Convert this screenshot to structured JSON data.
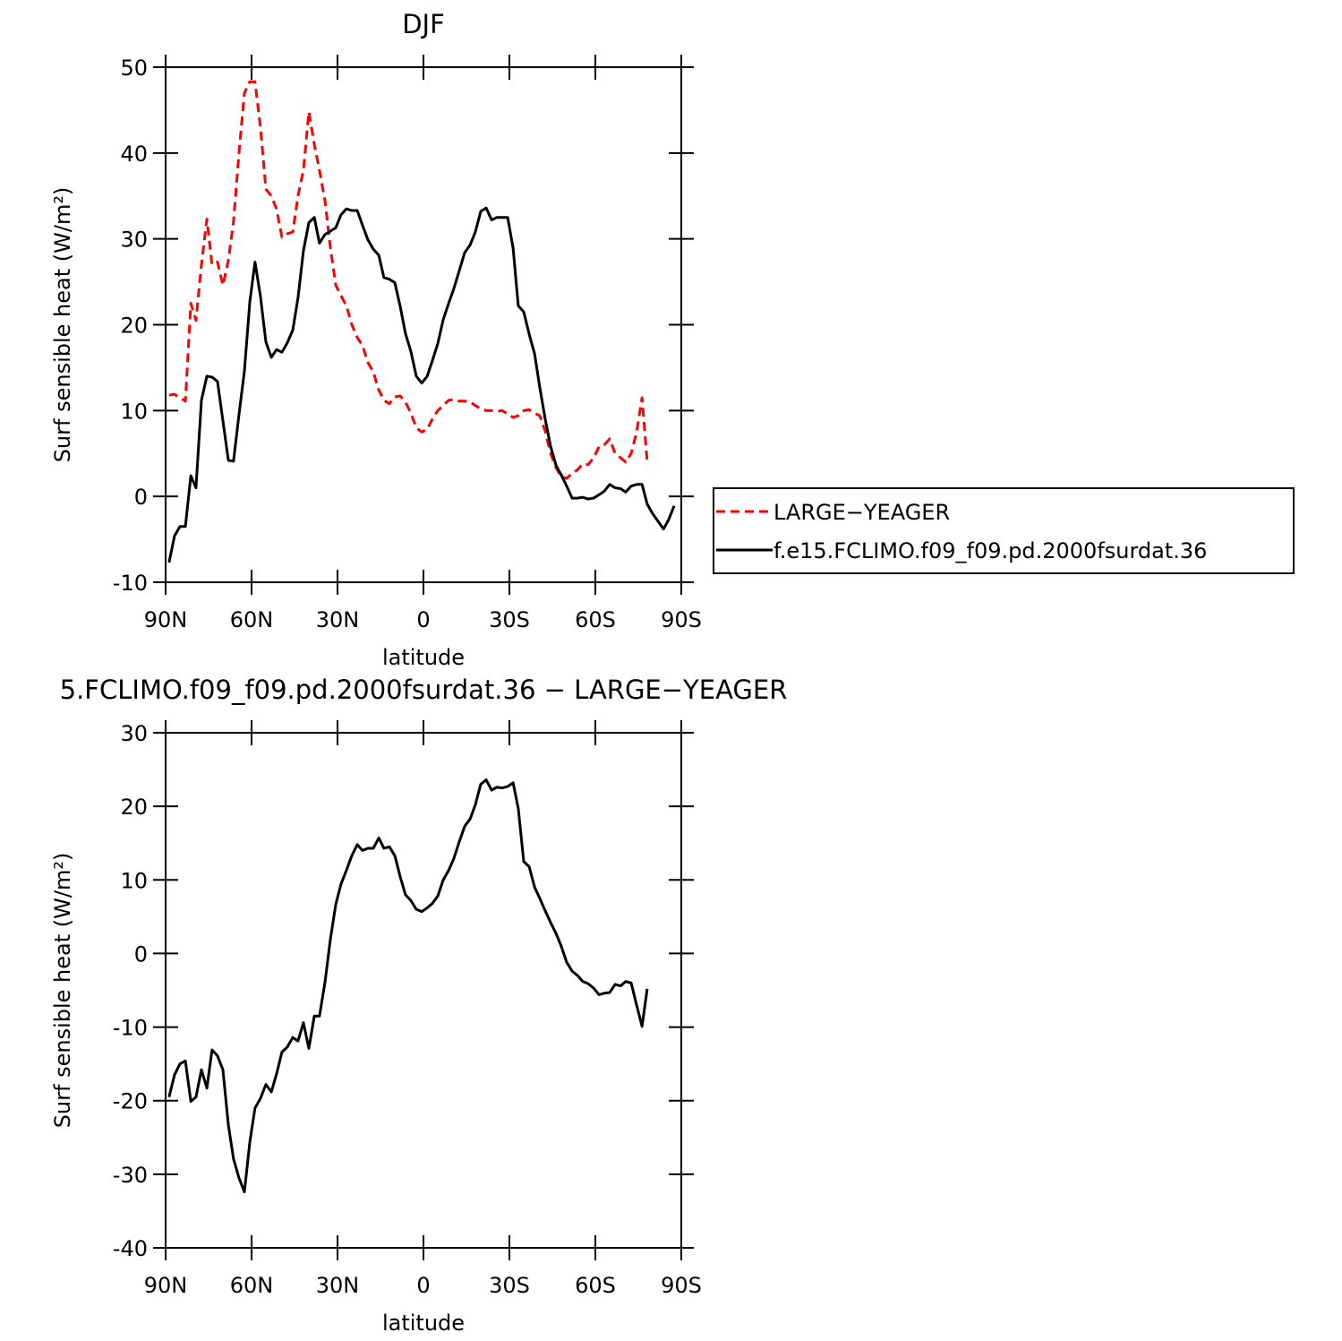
{
  "chart_data": [
    {
      "type": "line",
      "title": "DJF",
      "xlabel": "latitude",
      "ylabel": "Surf sensible heat (W/m²)",
      "x": [
        88.8,
        86.9,
        85.0,
        83.1,
        81.2,
        79.4,
        77.5,
        75.6,
        73.8,
        71.9,
        70.0,
        68.1,
        66.3,
        64.4,
        62.5,
        60.6,
        58.8,
        56.9,
        55.0,
        53.1,
        51.3,
        49.4,
        47.5,
        45.6,
        43.8,
        41.9,
        40.0,
        38.1,
        36.3,
        34.4,
        32.5,
        30.6,
        28.8,
        26.9,
        25.0,
        23.1,
        21.3,
        19.4,
        17.5,
        15.6,
        13.8,
        11.9,
        10.0,
        8.1,
        6.3,
        4.4,
        2.5,
        0.6,
        -1.3,
        -3.1,
        -5.0,
        -6.9,
        -8.8,
        -10.6,
        -12.5,
        -14.4,
        -16.3,
        -18.1,
        -20.0,
        -21.9,
        -23.8,
        -25.6,
        -27.5,
        -29.4,
        -31.3,
        -33.1,
        -35.0,
        -36.9,
        -38.8,
        -40.6,
        -42.5,
        -44.4,
        -46.3,
        -48.1,
        -50.0,
        -51.9,
        -53.8,
        -55.6,
        -57.5,
        -59.4,
        -61.3,
        -63.1,
        -65.0,
        -66.9,
        -68.8,
        -70.6,
        -72.5,
        -74.4,
        -76.3,
        -78.1,
        -80.0,
        -81.9,
        -83.8,
        -85.6,
        -87.5
      ],
      "series": [
        {
          "name": "LARGE−YEAGER",
          "color": "#ff0000",
          "dash": true,
          "values": [
            11.8,
            11.9,
            11.5,
            11.1,
            22.5,
            20.5,
            27,
            32.3,
            27,
            27.3,
            24.6,
            27.5,
            32,
            40,
            47,
            48.3,
            48.3,
            43,
            35.8,
            35,
            33.5,
            30.2,
            30.6,
            30.8,
            35,
            38,
            44.8,
            41,
            38,
            34.5,
            29,
            24.6,
            23.4,
            22.2,
            20,
            18.5,
            17.6,
            15.6,
            14.5,
            12.4,
            11.2,
            10.8,
            11.6,
            11.7,
            11,
            9.7,
            8,
            7.5,
            7.8,
            9,
            10,
            10.6,
            11.2,
            11.3,
            11.1,
            11.1,
            11,
            10.6,
            10.2,
            10,
            10,
            9.9,
            10,
            9.6,
            9.2,
            9.4,
            10,
            10.1,
            9.7,
            9.4,
            7.6,
            5,
            3.3,
            2.3,
            2.1,
            2.7,
            3.1,
            3.8,
            3.7,
            4.5,
            5.8,
            6,
            6.7,
            5,
            4.5,
            4,
            5,
            7.5,
            11.5,
            4,
            null,
            null,
            null,
            null,
            null
          ]
        },
        {
          "name": "f.e15.FCLIMO.f09_f09.pd.2000fsurdat.36",
          "color": "#000000",
          "dash": false,
          "values": [
            -7.7,
            -4.6,
            -3.5,
            -3.5,
            2.4,
            1.0,
            11.2,
            14.0,
            13.9,
            13.4,
            8.8,
            4.2,
            4.1,
            9.5,
            14.6,
            22.7,
            27.3,
            23.3,
            18.0,
            16.2,
            17.1,
            16.8,
            17.9,
            19.4,
            23.1,
            28.6,
            31.9,
            32.5,
            29.5,
            30.5,
            30.9,
            31.3,
            32.8,
            33.5,
            33.3,
            33.3,
            31.6,
            29.9,
            28.8,
            28.1,
            25.5,
            25.3,
            24.9,
            22.1,
            19.0,
            16.9,
            14.0,
            13.2,
            14.0,
            15.8,
            17.8,
            20.6,
            22.5,
            24.2,
            26.3,
            28.4,
            29.3,
            30.8,
            33.2,
            33.6,
            32.2,
            32.5,
            32.5,
            32.5,
            28.9,
            22.2,
            21.5,
            18.9,
            16.6,
            12.7,
            9.0,
            5.8,
            3.6,
            2.5,
            1.2,
            -0.2,
            -0.2,
            -0.1,
            -0.3,
            -0.2,
            0.2,
            0.6,
            1.4,
            1.0,
            0.9,
            0.5,
            1.2,
            1.4,
            1.4,
            -0.9,
            -2.0,
            -2.9,
            -3.8,
            -2.7,
            -1.1
          ]
        }
      ],
      "xlim": [
        90,
        -90
      ],
      "xticks": [
        {
          "value": 90,
          "label": "90N"
        },
        {
          "value": 60,
          "label": "60N"
        },
        {
          "value": 30,
          "label": "30N"
        },
        0,
        {
          "value": -30,
          "label": "30S"
        },
        {
          "value": -60,
          "label": "60S"
        },
        {
          "value": -90,
          "label": "90S"
        }
      ],
      "ylim": [
        -10,
        50
      ],
      "yticks": [
        -10,
        0,
        10,
        20,
        30,
        40,
        50
      ],
      "legend": "right"
    },
    {
      "type": "line",
      "title": "5.FCLIMO.f09_f09.pd.2000fsurdat.36 − LARGE−YEAGER",
      "xlabel": "latitude",
      "ylabel": "Surf sensible heat (W/m²)",
      "x": [
        88.8,
        86.9,
        85.0,
        83.1,
        81.2,
        79.4,
        77.5,
        75.6,
        73.8,
        71.9,
        70.0,
        68.1,
        66.3,
        64.4,
        62.5,
        60.6,
        58.8,
        56.9,
        55.0,
        53.1,
        51.3,
        49.4,
        47.5,
        45.6,
        43.8,
        41.9,
        40.0,
        38.1,
        36.3,
        34.4,
        32.5,
        30.6,
        28.8,
        26.9,
        25.0,
        23.1,
        21.3,
        19.4,
        17.5,
        15.6,
        13.8,
        11.9,
        10.0,
        8.1,
        6.3,
        4.4,
        2.5,
        0.6,
        -1.3,
        -3.1,
        -5.0,
        -6.9,
        -8.8,
        -10.6,
        -12.5,
        -14.4,
        -16.3,
        -18.1,
        -20.0,
        -21.9,
        -23.8,
        -25.6,
        -27.5,
        -29.4,
        -31.3,
        -33.1,
        -35.0,
        -36.9,
        -38.8,
        -40.6,
        -42.5,
        -44.4,
        -46.3,
        -48.1,
        -50.0,
        -51.9,
        -53.8,
        -55.6,
        -57.5,
        -59.4,
        -61.3,
        -63.1,
        -65.0,
        -66.9,
        -68.8,
        -70.6,
        -72.5,
        -74.4,
        -76.3,
        -78.1,
        -80.0,
        -81.9,
        -83.8,
        -85.6,
        -87.5
      ],
      "series": [
        {
          "color": "#000000",
          "dash": false,
          "values": [
            -19.5,
            -16.5,
            -15.0,
            -14.6,
            -20.1,
            -19.5,
            -15.8,
            -18.3,
            -13.1,
            -13.9,
            -15.8,
            -23.3,
            -27.9,
            -30.5,
            -32.4,
            -25.6,
            -21.0,
            -19.7,
            -17.8,
            -18.8,
            -16.4,
            -13.4,
            -12.7,
            -11.4,
            -11.9,
            -9.4,
            -12.9,
            -8.5,
            -8.5,
            -4.0,
            1.9,
            6.7,
            9.4,
            11.3,
            13.3,
            14.8,
            14.0,
            14.3,
            14.3,
            15.7,
            14.3,
            14.5,
            13.3,
            10.4,
            8.0,
            7.2,
            6.0,
            5.7,
            6.2,
            6.8,
            7.8,
            10.0,
            11.3,
            12.9,
            15.2,
            17.3,
            18.3,
            20.2,
            23.0,
            23.6,
            22.2,
            22.6,
            22.5,
            22.7,
            23.2,
            19.7,
            12.5,
            11.8,
            9.0,
            7.5,
            5.8,
            4.2,
            2.7,
            1.0,
            -1.2,
            -2.4,
            -3.0,
            -3.8,
            -4.1,
            -4.7,
            -5.6,
            -5.4,
            -5.3,
            -4.2,
            -4.4,
            -3.8,
            -4.0,
            -7.0,
            -9.9,
            -4.8,
            null,
            null,
            null,
            null,
            null
          ]
        }
      ],
      "xlim": [
        90,
        -90
      ],
      "xticks": [
        {
          "value": 90,
          "label": "90N"
        },
        {
          "value": 60,
          "label": "60N"
        },
        {
          "value": 30,
          "label": "30N"
        },
        0,
        {
          "value": -30,
          "label": "30S"
        },
        {
          "value": -60,
          "label": "60S"
        },
        {
          "value": -90,
          "label": "90S"
        }
      ],
      "ylim": [
        -40,
        30
      ],
      "yticks": [
        -40,
        -30,
        -20,
        -10,
        0,
        10,
        20,
        30
      ]
    }
  ]
}
